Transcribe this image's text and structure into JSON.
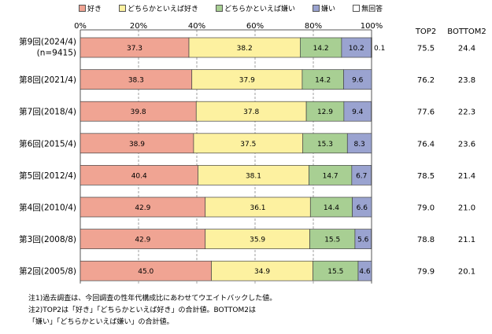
{
  "colors": {
    "like": "#f0a493",
    "somewhat_like": "#fdf1a0",
    "somewhat_dislike": "#a8cf93",
    "dislike": "#9aa3d0",
    "no_answer": "#ffffff"
  },
  "chart_data": {
    "type": "bar",
    "orientation": "horizontal",
    "stacked": true,
    "categories": [
      [
        "第9回(2024/4)",
        "(n=9415)"
      ],
      [
        "第8回(2021/4)"
      ],
      [
        "第7回(2018/4)"
      ],
      [
        "第6回(2015/4)"
      ],
      [
        "第5回(2012/4)"
      ],
      [
        "第4回(2010/4)"
      ],
      [
        "第3回(2008/8)"
      ],
      [
        "第2回(2005/8)"
      ]
    ],
    "series": [
      {
        "name": "好き",
        "values": [
          37.3,
          38.3,
          39.8,
          38.9,
          40.4,
          42.9,
          42.9,
          45.0
        ],
        "labels": [
          "37.3",
          "38.3",
          "39.8",
          "38.9",
          "40.4",
          "42.9",
          "42.9",
          "45.0"
        ]
      },
      {
        "name": "どちらかといえば好き",
        "values": [
          38.2,
          37.9,
          37.8,
          37.5,
          38.1,
          36.1,
          35.9,
          34.9
        ],
        "labels": [
          "38.2",
          "37.9",
          "37.8",
          "37.5",
          "38.1",
          "36.1",
          "35.9",
          "34.9"
        ]
      },
      {
        "name": "どちらかといえば嫌い",
        "values": [
          14.2,
          14.2,
          12.9,
          15.3,
          14.7,
          14.4,
          15.5,
          15.5
        ],
        "labels": [
          "14.2",
          "14.2",
          "12.9",
          "15.3",
          "14.7",
          "14.4",
          "15.5",
          "15.5"
        ]
      },
      {
        "name": "嫌い",
        "values": [
          10.2,
          9.6,
          9.4,
          8.3,
          6.7,
          6.6,
          5.6,
          4.6
        ],
        "labels": [
          "10.2",
          "9.6",
          "9.4",
          "8.3",
          "6.7",
          "6.6",
          "5.6",
          "4.6"
        ]
      },
      {
        "name": "無回答",
        "values": [
          0.1,
          0,
          0,
          0,
          0,
          0,
          0,
          0
        ],
        "labels": [
          "0.1",
          "",
          "",
          "",
          "",
          "",
          "",
          ""
        ]
      }
    ],
    "x_ticks": [
      "0%",
      "20%",
      "40%",
      "60%",
      "80%",
      "100%"
    ],
    "xlim": [
      0,
      100
    ],
    "grid": "vertical dashed",
    "legend_position": "top",
    "extra_columns": [
      {
        "header": "TOP2",
        "values": [
          "75.5",
          "76.2",
          "77.6",
          "76.4",
          "78.5",
          "79.0",
          "78.8",
          "79.9"
        ]
      },
      {
        "header": "BOTTOM2",
        "values": [
          "24.4",
          "23.8",
          "22.3",
          "23.6",
          "21.4",
          "21.0",
          "21.1",
          "20.1"
        ]
      }
    ]
  },
  "notes": [
    "注1)過去調査は、今回調査の性年代構成比にあわせてウエイトバックした値。",
    "注2)TOP2は「好き」「どちらかといえば好き」の合計値。BOTTOM2は",
    "「嫌い」「どちらかといえば嫌い」の合計値。"
  ]
}
